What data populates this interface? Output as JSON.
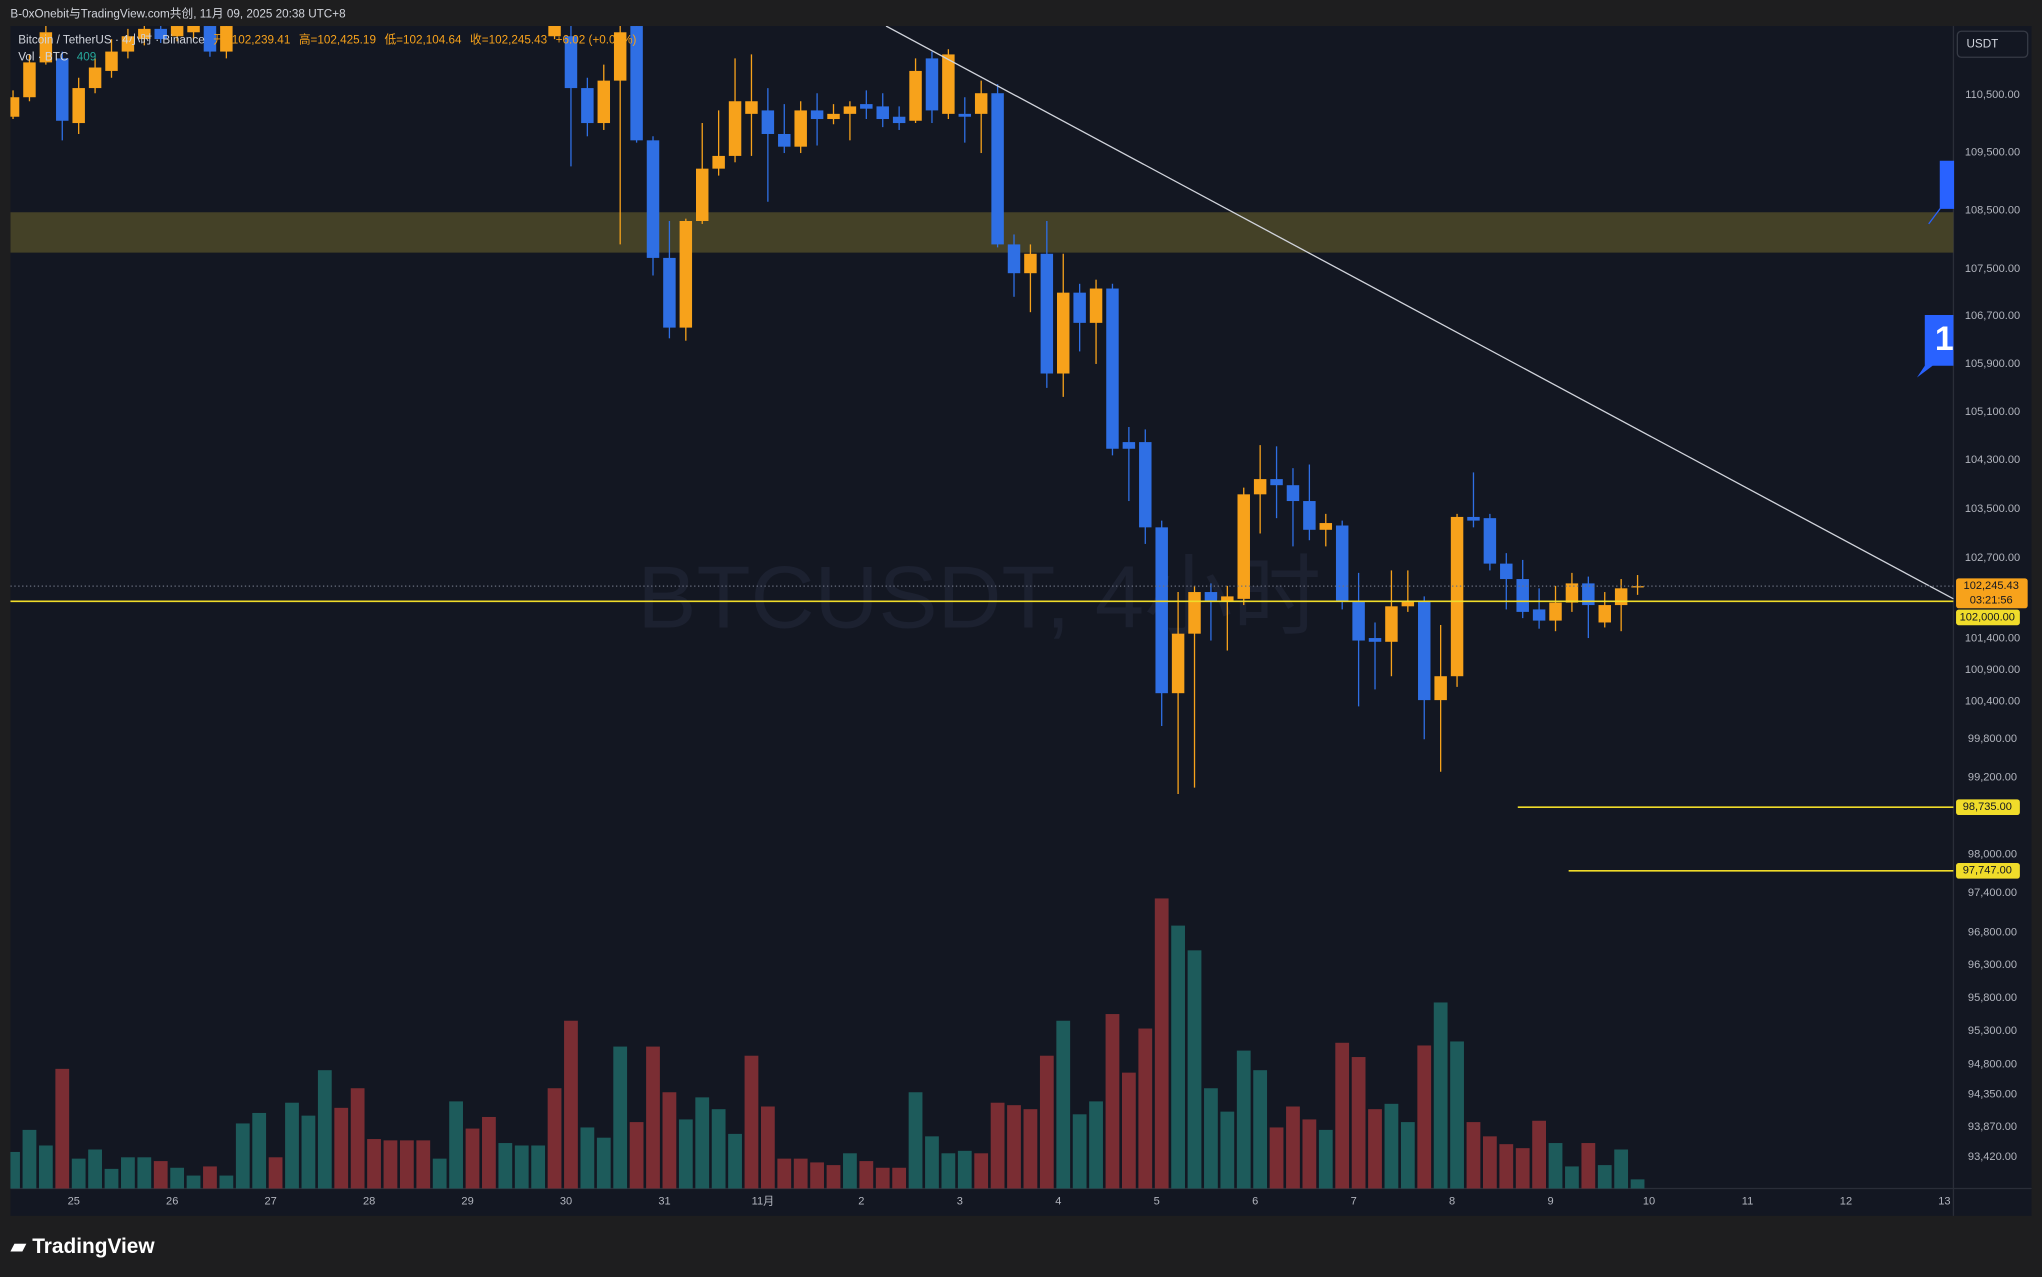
{
  "chart_data": {
    "type": "candlestick",
    "caption": "B-0xOnebit与TradingView.com共创, 11月 09, 2025 20:38 UTC+8",
    "symbol": "Bitcoin / TetherUS · 4小时 · Binance",
    "ohlc_legend": [
      "开=102,239.41",
      "高=102,425.19",
      "低=102,104.64",
      "收=102,245.43",
      "+6.02 (+0.01%)"
    ],
    "watermark": "BTCUSDT, 4小时",
    "currency": "USDT",
    "brand": "TradingView",
    "flag_label": "1",
    "countdown": "03:21:56",
    "last_price_label": "102,245.43",
    "up_color": "#f7a21b",
    "down_color": "#2f6fe4",
    "log_scale": true,
    "grid": false,
    "x": [
      0,
      1,
      2,
      3,
      4,
      5,
      6,
      7,
      8,
      9,
      10,
      11,
      12,
      13,
      14,
      15,
      16,
      17,
      18,
      19,
      20,
      21,
      22,
      23,
      24,
      25,
      26,
      27,
      28,
      29,
      30,
      31,
      32,
      33,
      34,
      35,
      36,
      37,
      38,
      39,
      40,
      41,
      42,
      43,
      44,
      45,
      46,
      47,
      48,
      49,
      50,
      51,
      52,
      53,
      54,
      55,
      56,
      57,
      58,
      59,
      60,
      61,
      62,
      63,
      64,
      65,
      66,
      67,
      68,
      69,
      70,
      71,
      72,
      73,
      74,
      75,
      76,
      77,
      78,
      79,
      80,
      81,
      82,
      83,
      84,
      85,
      86,
      87,
      88,
      89,
      90,
      91,
      92,
      93,
      94,
      95,
      96,
      97,
      98,
      99
    ],
    "open": [
      110120,
      110460,
      111070,
      111140,
      110010,
      110620,
      110920,
      111260,
      111480,
      111660,
      111530,
      111600,
      111710,
      111260,
      null,
      null,
      null,
      null,
      null,
      null,
      null,
      null,
      null,
      null,
      null,
      null,
      null,
      null,
      null,
      null,
      null,
      null,
      null,
      111530,
      111530,
      110620,
      110010,
      110750,
      111710,
      109710,
      107690,
      106510,
      108320,
      109220,
      109440,
      110170,
      110230,
      109820,
      109600,
      110230,
      110080,
      110170,
      110340,
      110300,
      110120,
      110050,
      111140,
      110170,
      110170,
      110170,
      110530,
      107920,
      107430,
      107760,
      105740,
      107100,
      106590,
      107170,
      104600,
      104600,
      103200,
      100530,
      101480,
      102150,
      102000,
      102040,
      103740,
      103990,
      103890,
      103630,
      103160,
      103230,
      102000,
      101410,
      101350,
      101920,
      102000,
      100420,
      100800,
      103370,
      103350,
      102610,
      102360,
      101870,
      101690,
      101980,
      102290,
      101660,
      101940,
      102239.41
    ],
    "high": [
      110580,
      111210,
      111710,
      111260,
      110800,
      111140,
      111480,
      111660,
      111750,
      111750,
      111800,
      111820,
      111800,
      111780,
      null,
      null,
      null,
      null,
      null,
      null,
      null,
      null,
      null,
      null,
      null,
      null,
      null,
      null,
      null,
      null,
      null,
      null,
      null,
      111820,
      111710,
      110800,
      111030,
      111710,
      111750,
      109780,
      108320,
      108360,
      110010,
      110230,
      111140,
      111210,
      110620,
      110340,
      110390,
      110530,
      110340,
      110390,
      110580,
      110530,
      110300,
      111140,
      111260,
      111300,
      110460,
      110750,
      110690,
      108090,
      107920,
      108320,
      107760,
      107250,
      107320,
      107250,
      104850,
      104810,
      103310,
      102150,
      102250,
      102290,
      102250,
      103850,
      104550,
      104530,
      104170,
      104230,
      103420,
      103310,
      102460,
      101660,
      102500,
      102500,
      102080,
      101620,
      103420,
      104100,
      103420,
      102780,
      102670,
      102210,
      102250,
      102460,
      102400,
      102150,
      102360,
      102425.19
    ],
    "low": [
      110080,
      110390,
      111030,
      109710,
      109820,
      110530,
      110800,
      111140,
      111370,
      111410,
      111440,
      111480,
      111170,
      111140,
      null,
      null,
      null,
      null,
      null,
      null,
      null,
      null,
      null,
      null,
      null,
      null,
      null,
      null,
      null,
      null,
      null,
      null,
      null,
      111480,
      109260,
      109780,
      109890,
      107920,
      109670,
      107390,
      106330,
      106290,
      108270,
      109100,
      109330,
      109440,
      108650,
      109490,
      109490,
      109620,
      109990,
      109710,
      110080,
      109940,
      109890,
      110010,
      110010,
      110080,
      109670,
      109490,
      107870,
      107030,
      106770,
      105500,
      105350,
      106110,
      105900,
      104380,
      103630,
      102930,
      100010,
      98940,
      99040,
      101370,
      101210,
      101940,
      103100,
      103350,
      102890,
      102990,
      102890,
      101870,
      100320,
      100590,
      100800,
      101830,
      99800,
      99290,
      100630,
      103200,
      102500,
      101870,
      101730,
      101560,
      101520,
      101830,
      101410,
      101580,
      101520,
      102104.64
    ],
    "close": [
      110460,
      111070,
      111600,
      110050,
      110620,
      110980,
      111260,
      111530,
      111660,
      111480,
      111710,
      111750,
      111260,
      111710,
      null,
      null,
      null,
      null,
      null,
      null,
      null,
      null,
      null,
      null,
      null,
      null,
      null,
      null,
      null,
      null,
      null,
      null,
      null,
      111750,
      110620,
      110010,
      110750,
      111600,
      109710,
      107690,
      106510,
      108320,
      109220,
      109440,
      110390,
      110390,
      109820,
      109600,
      110230,
      110080,
      110170,
      110300,
      110260,
      110080,
      110010,
      110920,
      110230,
      111210,
      110120,
      110530,
      107920,
      107430,
      107760,
      105740,
      107100,
      106590,
      107170,
      104490,
      104490,
      103200,
      100530,
      101480,
      102150,
      102000,
      102080,
      103740,
      103990,
      103890,
      103630,
      103160,
      103270,
      102000,
      101370,
      101350,
      101920,
      102000,
      100420,
      100800,
      103370,
      103310,
      102610,
      102360,
      101830,
      101690,
      101980,
      102290,
      101940,
      101940,
      102210,
      102245.43
    ],
    "volume": {
      "name": "Vol · BTC",
      "values": [
        1640,
        2630,
        1930,
        5370,
        1340,
        1750,
        880,
        1400,
        1400,
        1230,
        930,
        580,
        990,
        580,
        2920,
        3390,
        1400,
        3850,
        3270,
        5310,
        3620,
        4500,
        2220,
        2160,
        2160,
        2160,
        1340,
        3910,
        2690,
        3210,
        2040,
        1930,
        1930,
        4500,
        7530,
        2740,
        2280,
        6370,
        2980,
        6370,
        4320,
        3100,
        4090,
        3560,
        2450,
        5960,
        3680,
        1340,
        1340,
        1170,
        1050,
        1580,
        1230,
        930,
        930,
        4320,
        2340,
        1580,
        1690,
        1580,
        3850,
        3740,
        3560,
        5960,
        7530,
        3330,
        3910,
        7830,
        5200,
        7180,
        13020,
        11800,
        10690,
        4500,
        3450,
        6190,
        5310,
        2740,
        3680,
        3100,
        2630,
        6540,
        5900,
        3560,
        3800,
        2980,
        6420,
        8350,
        6600,
        2980,
        2340,
        1990,
        1810,
        3040,
        2040,
        990,
        2040,
        1050,
        1750,
        409
      ],
      "colors": [
        "#1d5b5b",
        "#1d5b5b",
        "#1d5b5b",
        "#7a2d33",
        "#1d5b5b",
        "#1d5b5b",
        "#1d5b5b",
        "#1d5b5b",
        "#1d5b5b",
        "#7a2d33",
        "#1d5b5b",
        "#1d5b5b",
        "#7a2d33",
        "#1d5b5b",
        "#1d5b5b",
        "#1d5b5b",
        "#7a2d33",
        "#1d5b5b",
        "#1d5b5b",
        "#1d5b5b",
        "#7a2d33",
        "#7a2d33",
        "#7a2d33",
        "#7a2d33",
        "#7a2d33",
        "#7a2d33",
        "#1d5b5b",
        "#1d5b5b",
        "#7a2d33",
        "#7a2d33",
        "#1d5b5b",
        "#1d5b5b",
        "#1d5b5b",
        "#7a2d33",
        "#7a2d33",
        "#1d5b5b",
        "#1d5b5b",
        "#1d5b5b",
        "#7a2d33",
        "#7a2d33",
        "#7a2d33",
        "#1d5b5b",
        "#1d5b5b",
        "#1d5b5b",
        "#1d5b5b",
        "#7a2d33",
        "#7a2d33",
        "#7a2d33",
        "#7a2d33",
        "#7a2d33",
        "#7a2d33",
        "#1d5b5b",
        "#7a2d33",
        "#7a2d33",
        "#7a2d33",
        "#1d5b5b",
        "#1d5b5b",
        "#1d5b5b",
        "#1d5b5b",
        "#7a2d33",
        "#7a2d33",
        "#7a2d33",
        "#7a2d33",
        "#7a2d33",
        "#1d5b5b",
        "#1d5b5b",
        "#1d5b5b",
        "#7a2d33",
        "#7a2d33",
        "#7a2d33",
        "#7a2d33",
        "#1d5b5b",
        "#1d5b5b",
        "#1d5b5b",
        "#1d5b5b",
        "#1d5b5b",
        "#1d5b5b",
        "#7a2d33",
        "#7a2d33",
        "#7a2d33",
        "#1d5b5b",
        "#7a2d33",
        "#7a2d33",
        "#7a2d33",
        "#1d5b5b",
        "#1d5b5b",
        "#7a2d33",
        "#1d5b5b",
        "#1d5b5b",
        "#7a2d33",
        "#7a2d33",
        "#7a2d33",
        "#7a2d33",
        "#7a2d33",
        "#1d5b5b",
        "#1d5b5b",
        "#7a2d33",
        "#1d5b5b",
        "#1d5b5b",
        "#1d5b5b"
      ],
      "vlim": [
        0,
        17530
      ]
    },
    "xlim": [
      -0.16,
      118.25
    ],
    "xticks": [
      {
        "value": 3.7,
        "label": "25"
      },
      {
        "value": 9.7,
        "label": "26"
      },
      {
        "value": 15.7,
        "label": "27"
      },
      {
        "value": 21.7,
        "label": "28"
      },
      {
        "value": 27.7,
        "label": "29"
      },
      {
        "value": 33.7,
        "label": "30"
      },
      {
        "value": 39.7,
        "label": "31"
      },
      {
        "value": 45.7,
        "label": "11月"
      },
      {
        "value": 51.7,
        "label": "2"
      },
      {
        "value": 57.7,
        "label": "3"
      },
      {
        "value": 63.7,
        "label": "4"
      },
      {
        "value": 69.7,
        "label": "5"
      },
      {
        "value": 75.7,
        "label": "6"
      },
      {
        "value": 81.7,
        "label": "7"
      },
      {
        "value": 87.7,
        "label": "8"
      },
      {
        "value": 93.7,
        "label": "9"
      },
      {
        "value": 99.7,
        "label": "10"
      },
      {
        "value": 105.7,
        "label": "11"
      },
      {
        "value": 111.7,
        "label": "12"
      },
      {
        "value": 117.7,
        "label": "13"
      }
    ],
    "ylim": [
      92960,
      111710
    ],
    "yticks": [
      {
        "value": 110500,
        "label": "110,500.00"
      },
      {
        "value": 109500,
        "label": "109,500.00"
      },
      {
        "value": 108500,
        "label": "108,500.00"
      },
      {
        "value": 107500,
        "label": "107,500.00"
      },
      {
        "value": 106700,
        "label": "106,700.00"
      },
      {
        "value": 105900,
        "label": "105,900.00"
      },
      {
        "value": 105100,
        "label": "105,100.00"
      },
      {
        "value": 104300,
        "label": "104,300.00"
      },
      {
        "value": 103500,
        "label": "103,500.00"
      },
      {
        "value": 102700,
        "label": "102,700.00"
      },
      {
        "value": 101400,
        "label": "101,400.00"
      },
      {
        "value": 100900,
        "label": "100,900.00"
      },
      {
        "value": 100400,
        "label": "100,400.00"
      },
      {
        "value": 99800,
        "label": "99,800.00"
      },
      {
        "value": 99200,
        "label": "99,200.00"
      },
      {
        "value": 98000,
        "label": "98,000.00"
      },
      {
        "value": 97400,
        "label": "97,400.00"
      },
      {
        "value": 96800,
        "label": "96,800.00"
      },
      {
        "value": 96300,
        "label": "96,300.00"
      },
      {
        "value": 95800,
        "label": "95,800.00"
      },
      {
        "value": 95300,
        "label": "95,300.00"
      },
      {
        "value": 94800,
        "label": "94,800.00"
      },
      {
        "value": 94350,
        "label": "94,350.00"
      },
      {
        "value": 93870,
        "label": "93,870.00"
      },
      {
        "value": 93420,
        "label": "93,420.00"
      }
    ],
    "levels": [
      {
        "value": 102000,
        "label": "102,000.00"
      },
      {
        "value": 98735,
        "label": "98,735.00",
        "start": 91.7
      },
      {
        "value": 97747,
        "label": "97,747.00",
        "start": 94.8
      }
    ],
    "level_color": "#f0dc2a",
    "zone": [
      107780,
      108470
    ],
    "zone_color": "#4a4628",
    "trend_line": {
      "x": [
        53.2,
        118.25
      ],
      "y": [
        111710,
        102040
      ]
    }
  }
}
